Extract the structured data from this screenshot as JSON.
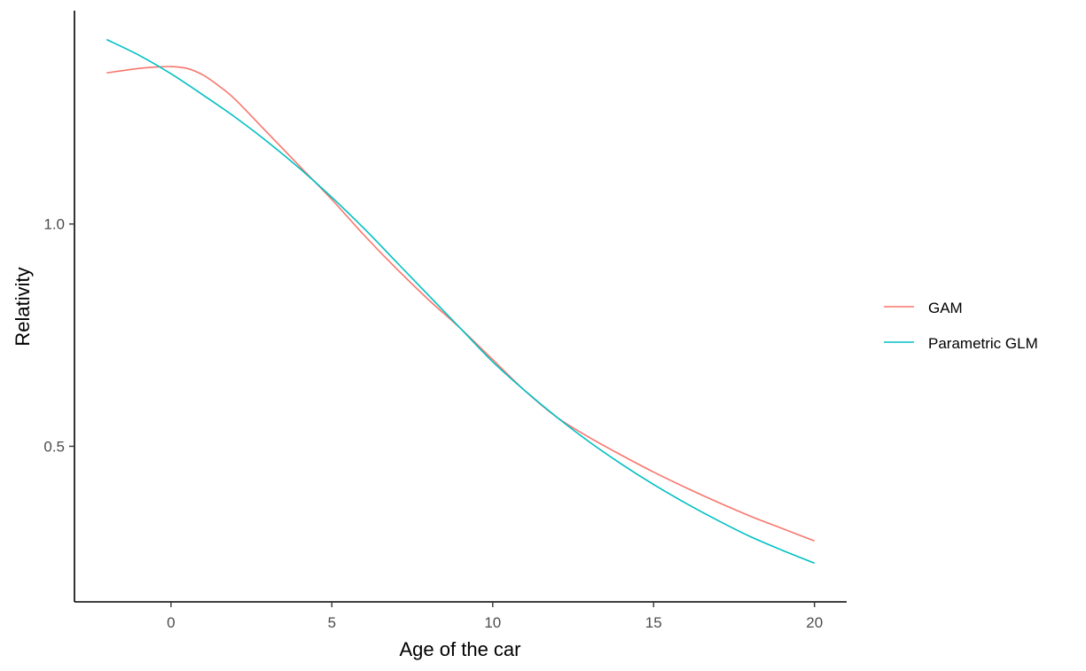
{
  "chart_data": {
    "type": "line",
    "xlabel": "Age of the car",
    "ylabel": "Relativity",
    "xlim": [
      -3,
      21
    ],
    "ylim": [
      0.15,
      1.48
    ],
    "x_ticks": [
      0,
      5,
      10,
      15,
      20
    ],
    "x_tick_labels": [
      "0",
      "5",
      "10",
      "15",
      "20"
    ],
    "y_ticks": [
      0.5,
      1.0
    ],
    "y_tick_labels": [
      "0.5",
      "1.0"
    ],
    "grid": false,
    "legend_position": "right",
    "series": [
      {
        "name": "GAM",
        "color": "#F8766D",
        "x": [
          -2,
          -1,
          -0.5,
          0,
          0.5,
          1,
          1.5,
          2,
          3,
          4,
          5,
          6,
          7,
          8,
          9,
          10,
          11,
          12,
          13,
          14,
          15,
          16,
          17,
          18,
          19,
          20
        ],
        "y": [
          1.34,
          1.35,
          1.353,
          1.354,
          1.35,
          1.335,
          1.31,
          1.28,
          1.205,
          1.13,
          1.055,
          0.975,
          0.9,
          0.83,
          0.765,
          0.695,
          0.625,
          0.565,
          0.52,
          0.48,
          0.442,
          0.407,
          0.374,
          0.343,
          0.315,
          0.287
        ]
      },
      {
        "name": "Parametric GLM",
        "color": "#00BFC4",
        "x": [
          -2,
          -1,
          0,
          1,
          2,
          3,
          4,
          5,
          6,
          7,
          8,
          9,
          10,
          11,
          12,
          13,
          14,
          15,
          16,
          17,
          18,
          19,
          20
        ],
        "y": [
          1.415,
          1.38,
          1.338,
          1.29,
          1.24,
          1.185,
          1.125,
          1.06,
          0.99,
          0.915,
          0.84,
          0.765,
          0.69,
          0.625,
          0.565,
          0.51,
          0.46,
          0.414,
          0.372,
          0.333,
          0.297,
          0.266,
          0.237
        ]
      }
    ]
  }
}
